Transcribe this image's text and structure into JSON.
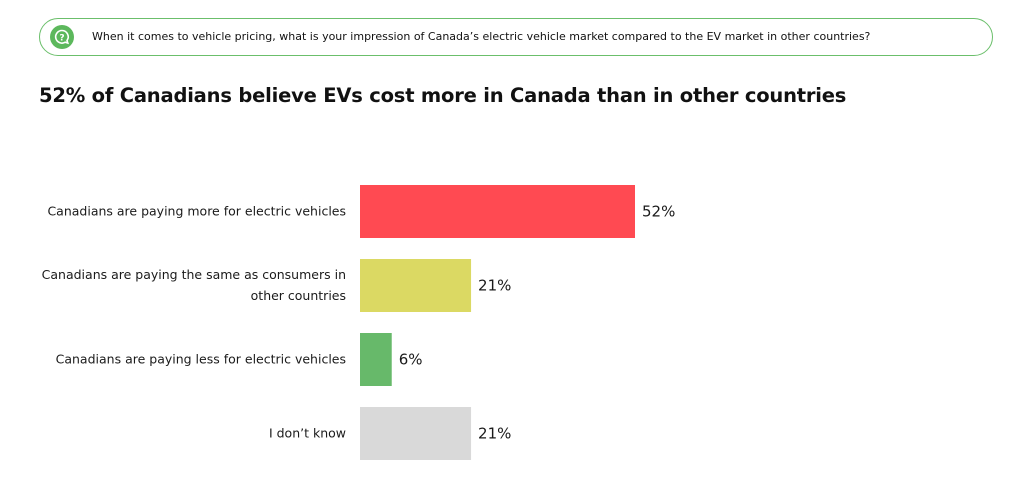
{
  "question": {
    "icon": "question-bubble-icon",
    "text": "When it comes to vehicle pricing, what is your impression of Canada’s electric vehicle market compared to the EV market in other countries?",
    "accent": "#6bbf6b"
  },
  "headline": "52% of Canadians believe EVs cost more in Canada than in other countries",
  "chart_data": {
    "type": "bar",
    "orientation": "horizontal",
    "categories": [
      [
        "Canadians are paying more for electric vehicles"
      ],
      [
        "Canadians are paying the same as consumers in",
        "other countries"
      ],
      [
        "Canadians are paying less for electric vehicles"
      ],
      [
        "I don’t know"
      ]
    ],
    "values": [
      52,
      21,
      6,
      21
    ],
    "value_labels": [
      "52%",
      "21%",
      "6%",
      "21%"
    ],
    "colors": [
      "#ff4a52",
      "#dbd963",
      "#67b96a",
      "#d9d9d9"
    ],
    "xlim": [
      0,
      100
    ],
    "grid": false
  }
}
